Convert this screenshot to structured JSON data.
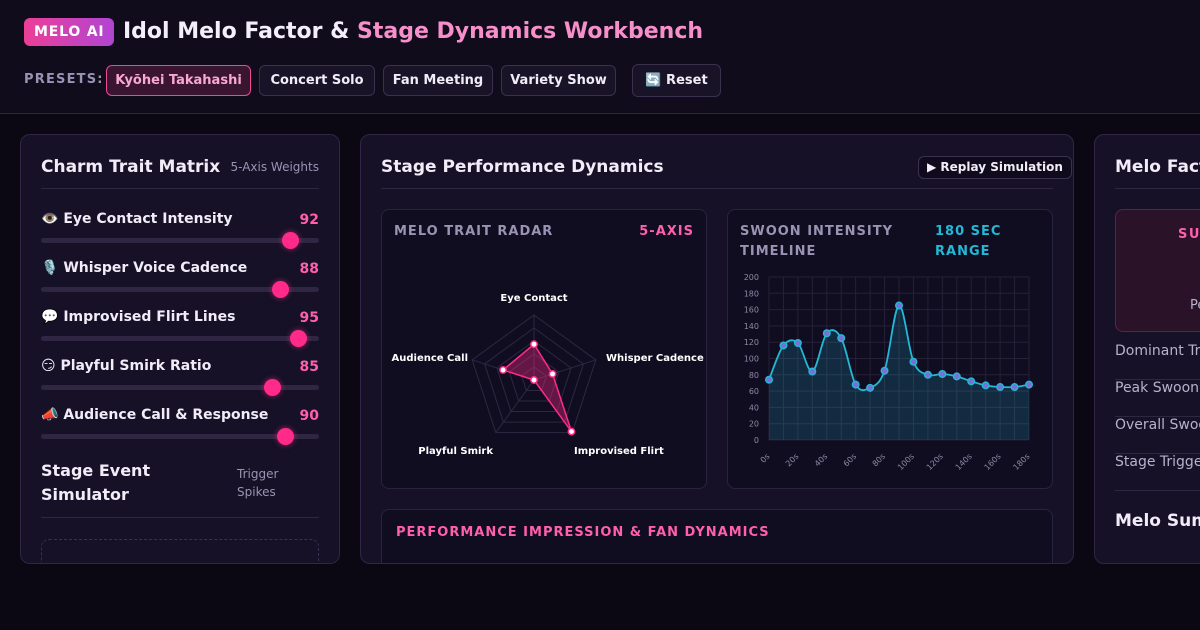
{
  "app": {
    "badge": "MELO AI",
    "title_main": "Idol Melo Factor & ",
    "title_accent": "Stage Dynamics Workbench"
  },
  "presets": {
    "label": "PRESETS:",
    "items": [
      "Kyōhei Takahashi",
      "Concert Solo",
      "Fan Meeting",
      "Variety Show"
    ],
    "active": "Kyōhei Takahashi",
    "reset_label": "🔄 Reset"
  },
  "charm_matrix": {
    "title": "Charm Trait Matrix",
    "subtitle": "5-Axis Weights",
    "sliders": [
      {
        "icon": "👁️",
        "label": "Eye Contact Intensity",
        "value": 92
      },
      {
        "icon": "🎙️",
        "label": "Whisper Voice Cadence",
        "value": 88
      },
      {
        "icon": "💬",
        "label": "Improvised Flirt Lines",
        "value": 95
      },
      {
        "icon": "😏",
        "label": "Playful Smirk Ratio",
        "value": 85
      },
      {
        "icon": "📣",
        "label": "Audience Call & Response",
        "value": 90
      }
    ],
    "simulator_title": "Stage Event Simulator",
    "simulator_subtitle": "Trigger Spikes"
  },
  "stage_dynamics": {
    "title": "Stage Performance Dynamics",
    "replay_label": "▶ Replay Simulation",
    "radar": {
      "label": "MELO TRAIT RADAR",
      "tag": "5-AXIS",
      "axes": [
        "Eye Contact",
        "Whisper Cadence",
        "Improvised Flirt",
        "Playful Smirk",
        "Audience Call"
      ]
    },
    "timeline": {
      "label": "SWOON INTENSITY TIMELINE",
      "tag": "180 SEC RANGE"
    },
    "impression_label": "PERFORMANCE IMPRESSION & FAN DYNAMICS"
  },
  "melo_panel": {
    "title": "Melo Factor",
    "summary_tag": "SUMMARY",
    "summary_sub": "Peak",
    "stats": [
      "Dominant Trait",
      "Peak Swoon Score",
      "Overall Swoon",
      "Stage Trigger"
    ],
    "section_title": "Melo Summary"
  },
  "colors": {
    "accent_pink": "#ff2a8a",
    "accent_cyan": "#22b8d6",
    "background": "#0b0814"
  },
  "chart_data": [
    {
      "type": "radar",
      "axes": [
        "Eye Contact",
        "Whisper Cadence",
        "Improvised Flirt",
        "Playful Smirk",
        "Audience Call"
      ],
      "values": [
        0.55,
        0.3,
        0.98,
        0.0,
        0.5
      ],
      "range": [
        0,
        1
      ],
      "grid": true
    },
    {
      "type": "line",
      "x_ticks": [
        "0s",
        "20s",
        "40s",
        "60s",
        "80s",
        "100s",
        "120s",
        "140s",
        "160s",
        "180s"
      ],
      "x": [
        0,
        10,
        20,
        30,
        40,
        50,
        60,
        70,
        80,
        90,
        100,
        110,
        120,
        130,
        140,
        150,
        160,
        170,
        180
      ],
      "values": [
        74,
        116,
        119,
        84,
        131,
        125,
        68,
        64,
        85,
        165,
        96,
        80,
        81,
        78,
        72,
        67,
        65,
        65,
        68
      ],
      "ylim": [
        0,
        200
      ],
      "y_ticks": [
        0,
        20,
        40,
        60,
        80,
        100,
        120,
        140,
        160,
        180,
        200
      ],
      "grid": true,
      "area_fill": true
    }
  ]
}
